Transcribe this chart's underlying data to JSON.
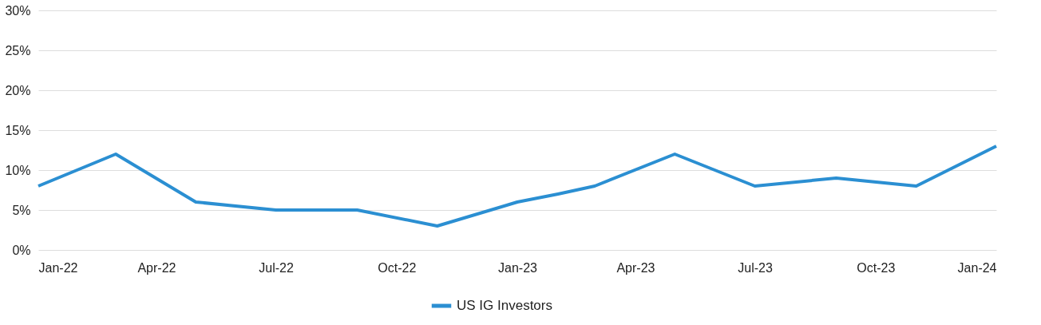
{
  "chart_data": {
    "type": "line",
    "x": [
      "2022-01",
      "2022-03",
      "2022-05",
      "2022-07",
      "2022-09",
      "2022-11",
      "2023-01",
      "2023-02",
      "2023-03",
      "2023-05",
      "2023-07",
      "2023-09",
      "2023-11",
      "2024-01"
    ],
    "series": [
      {
        "name": "US IG Investors",
        "color": "#2b8fd2",
        "values": [
          8,
          12,
          6,
          5,
          5,
          3,
          6,
          7,
          8,
          12,
          8,
          9,
          8,
          13
        ]
      }
    ],
    "xlim": [
      "2022-01",
      "2024-01"
    ],
    "xticks": [
      {
        "value": "2022-01",
        "label": "Jan-22"
      },
      {
        "value": "2022-04",
        "label": "Apr-22"
      },
      {
        "value": "2022-07",
        "label": "Jul-22"
      },
      {
        "value": "2022-10",
        "label": "Oct-22"
      },
      {
        "value": "2023-01",
        "label": "Jan-23"
      },
      {
        "value": "2023-04",
        "label": "Apr-23"
      },
      {
        "value": "2023-07",
        "label": "Jul-23"
      },
      {
        "value": "2023-10",
        "label": "Oct-23"
      },
      {
        "value": "2024-01",
        "label": "Jan-24"
      }
    ],
    "ylim": [
      0,
      30
    ],
    "yticks": [
      {
        "value": 0,
        "label": "0%"
      },
      {
        "value": 5,
        "label": "5%"
      },
      {
        "value": 10,
        "label": "10%"
      },
      {
        "value": 15,
        "label": "15%"
      },
      {
        "value": 20,
        "label": "20%"
      },
      {
        "value": 25,
        "label": "25%"
      },
      {
        "value": 30,
        "label": "30%"
      }
    ],
    "grid": "y",
    "legend": "bottom",
    "marker": "none",
    "line_style": "solid"
  }
}
